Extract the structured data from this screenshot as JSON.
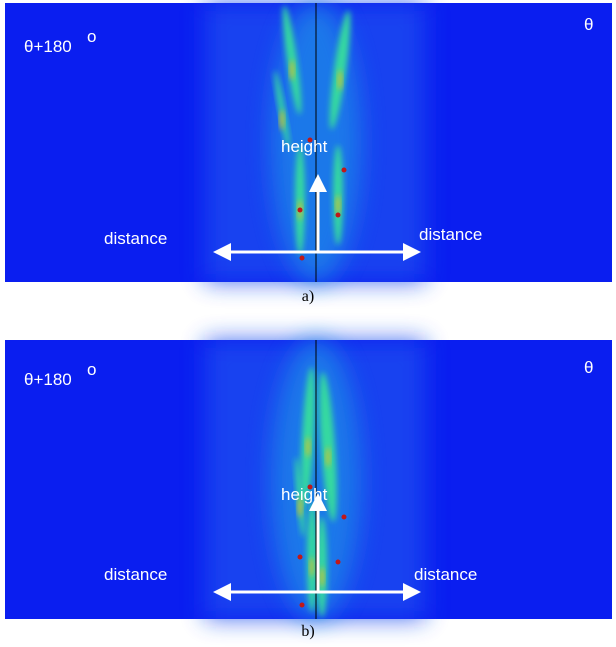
{
  "panels": [
    {
      "left_angle": "θ+180",
      "degree_mark": "o",
      "right_angle": "θ",
      "height_label": "height",
      "left_distance": "distance",
      "right_distance": "distance",
      "caption": "a)"
    },
    {
      "left_angle": "θ+180",
      "degree_mark": "o",
      "right_angle": "θ",
      "height_label": "height",
      "left_distance": "distance",
      "right_distance": "distance",
      "caption": "b)"
    }
  ]
}
